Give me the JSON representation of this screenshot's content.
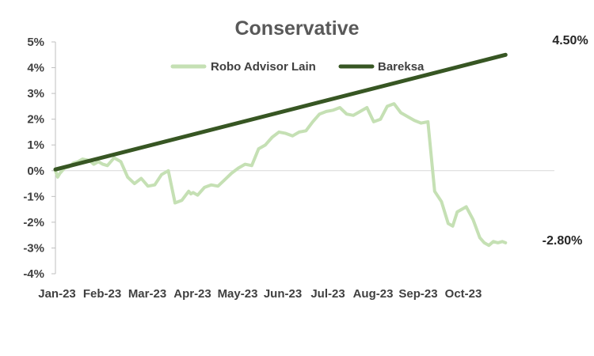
{
  "chart_data": {
    "type": "line",
    "title": "Conservative",
    "xlabel": "",
    "ylabel": "",
    "ylim": [
      -4,
      5
    ],
    "y_ticks": [
      5,
      4,
      3,
      2,
      1,
      0,
      -1,
      -2,
      -3,
      -4
    ],
    "y_tick_labels": [
      "5%",
      "4%",
      "3%",
      "2%",
      "1%",
      "0%",
      "-1%",
      "-2%",
      "-3%",
      "-4%"
    ],
    "categories": [
      "Jan-23",
      "Feb-23",
      "Mar-23",
      "Apr-23",
      "May-23",
      "Jun-23",
      "Jul-23",
      "Aug-23",
      "Sep-23",
      "Oct-23"
    ],
    "legend_position": "top-center",
    "grid": false,
    "series": [
      {
        "name": "Robo Advisor Lain",
        "color": "#c5e0b4",
        "x": [
          0,
          0.05,
          0.1,
          0.2,
          0.3,
          0.4,
          0.5,
          0.6,
          0.75,
          0.85,
          0.95,
          1.05,
          1.15,
          1.3,
          1.45,
          1.6,
          1.75,
          1.9,
          2.05,
          2.2,
          2.35,
          2.5,
          2.65,
          2.8,
          2.95,
          3.0,
          3.05,
          3.15,
          3.3,
          3.45,
          3.6,
          3.75,
          3.9,
          4.05,
          4.2,
          4.35,
          4.5,
          4.65,
          4.8,
          4.95,
          5.1,
          5.25,
          5.4,
          5.55,
          5.7,
          5.85,
          6.0,
          6.15,
          6.3,
          6.45,
          6.6,
          6.75,
          6.9,
          7.05,
          7.2,
          7.35,
          7.5,
          7.65,
          7.8,
          7.95,
          8.1,
          8.25,
          8.4,
          8.55,
          8.7,
          8.8,
          8.9,
          9.0,
          9.1,
          9.25,
          9.4,
          9.5,
          9.6,
          9.7,
          9.8,
          9.9,
          9.97
        ],
        "values": [
          0.0,
          -0.25,
          -0.1,
          0.1,
          0.15,
          0.3,
          0.35,
          0.45,
          0.4,
          0.25,
          0.35,
          0.25,
          0.2,
          0.5,
          0.35,
          -0.25,
          -0.5,
          -0.3,
          -0.6,
          -0.55,
          -0.15,
          0.0,
          -1.25,
          -1.15,
          -0.8,
          -0.9,
          -0.85,
          -0.95,
          -0.65,
          -0.55,
          -0.6,
          -0.35,
          -0.1,
          0.1,
          0.25,
          0.2,
          0.85,
          1.0,
          1.3,
          1.5,
          1.45,
          1.35,
          1.5,
          1.55,
          1.9,
          2.2,
          2.3,
          2.35,
          2.45,
          2.2,
          2.15,
          2.3,
          2.45,
          1.9,
          2.0,
          2.5,
          2.6,
          2.25,
          2.1,
          1.95,
          1.85,
          1.9,
          -0.8,
          -1.2,
          -2.05,
          -2.15,
          -1.6,
          -1.5,
          -1.4,
          -1.9,
          -2.6,
          -2.8,
          -2.9,
          -2.75,
          -2.8,
          -2.75,
          -2.8
        ]
      },
      {
        "name": "Bareksa",
        "color": "#375623",
        "x": [
          0,
          9.97
        ],
        "values": [
          0.05,
          4.5
        ]
      }
    ],
    "end_labels": [
      "4.50%",
      "-2.80%"
    ]
  }
}
